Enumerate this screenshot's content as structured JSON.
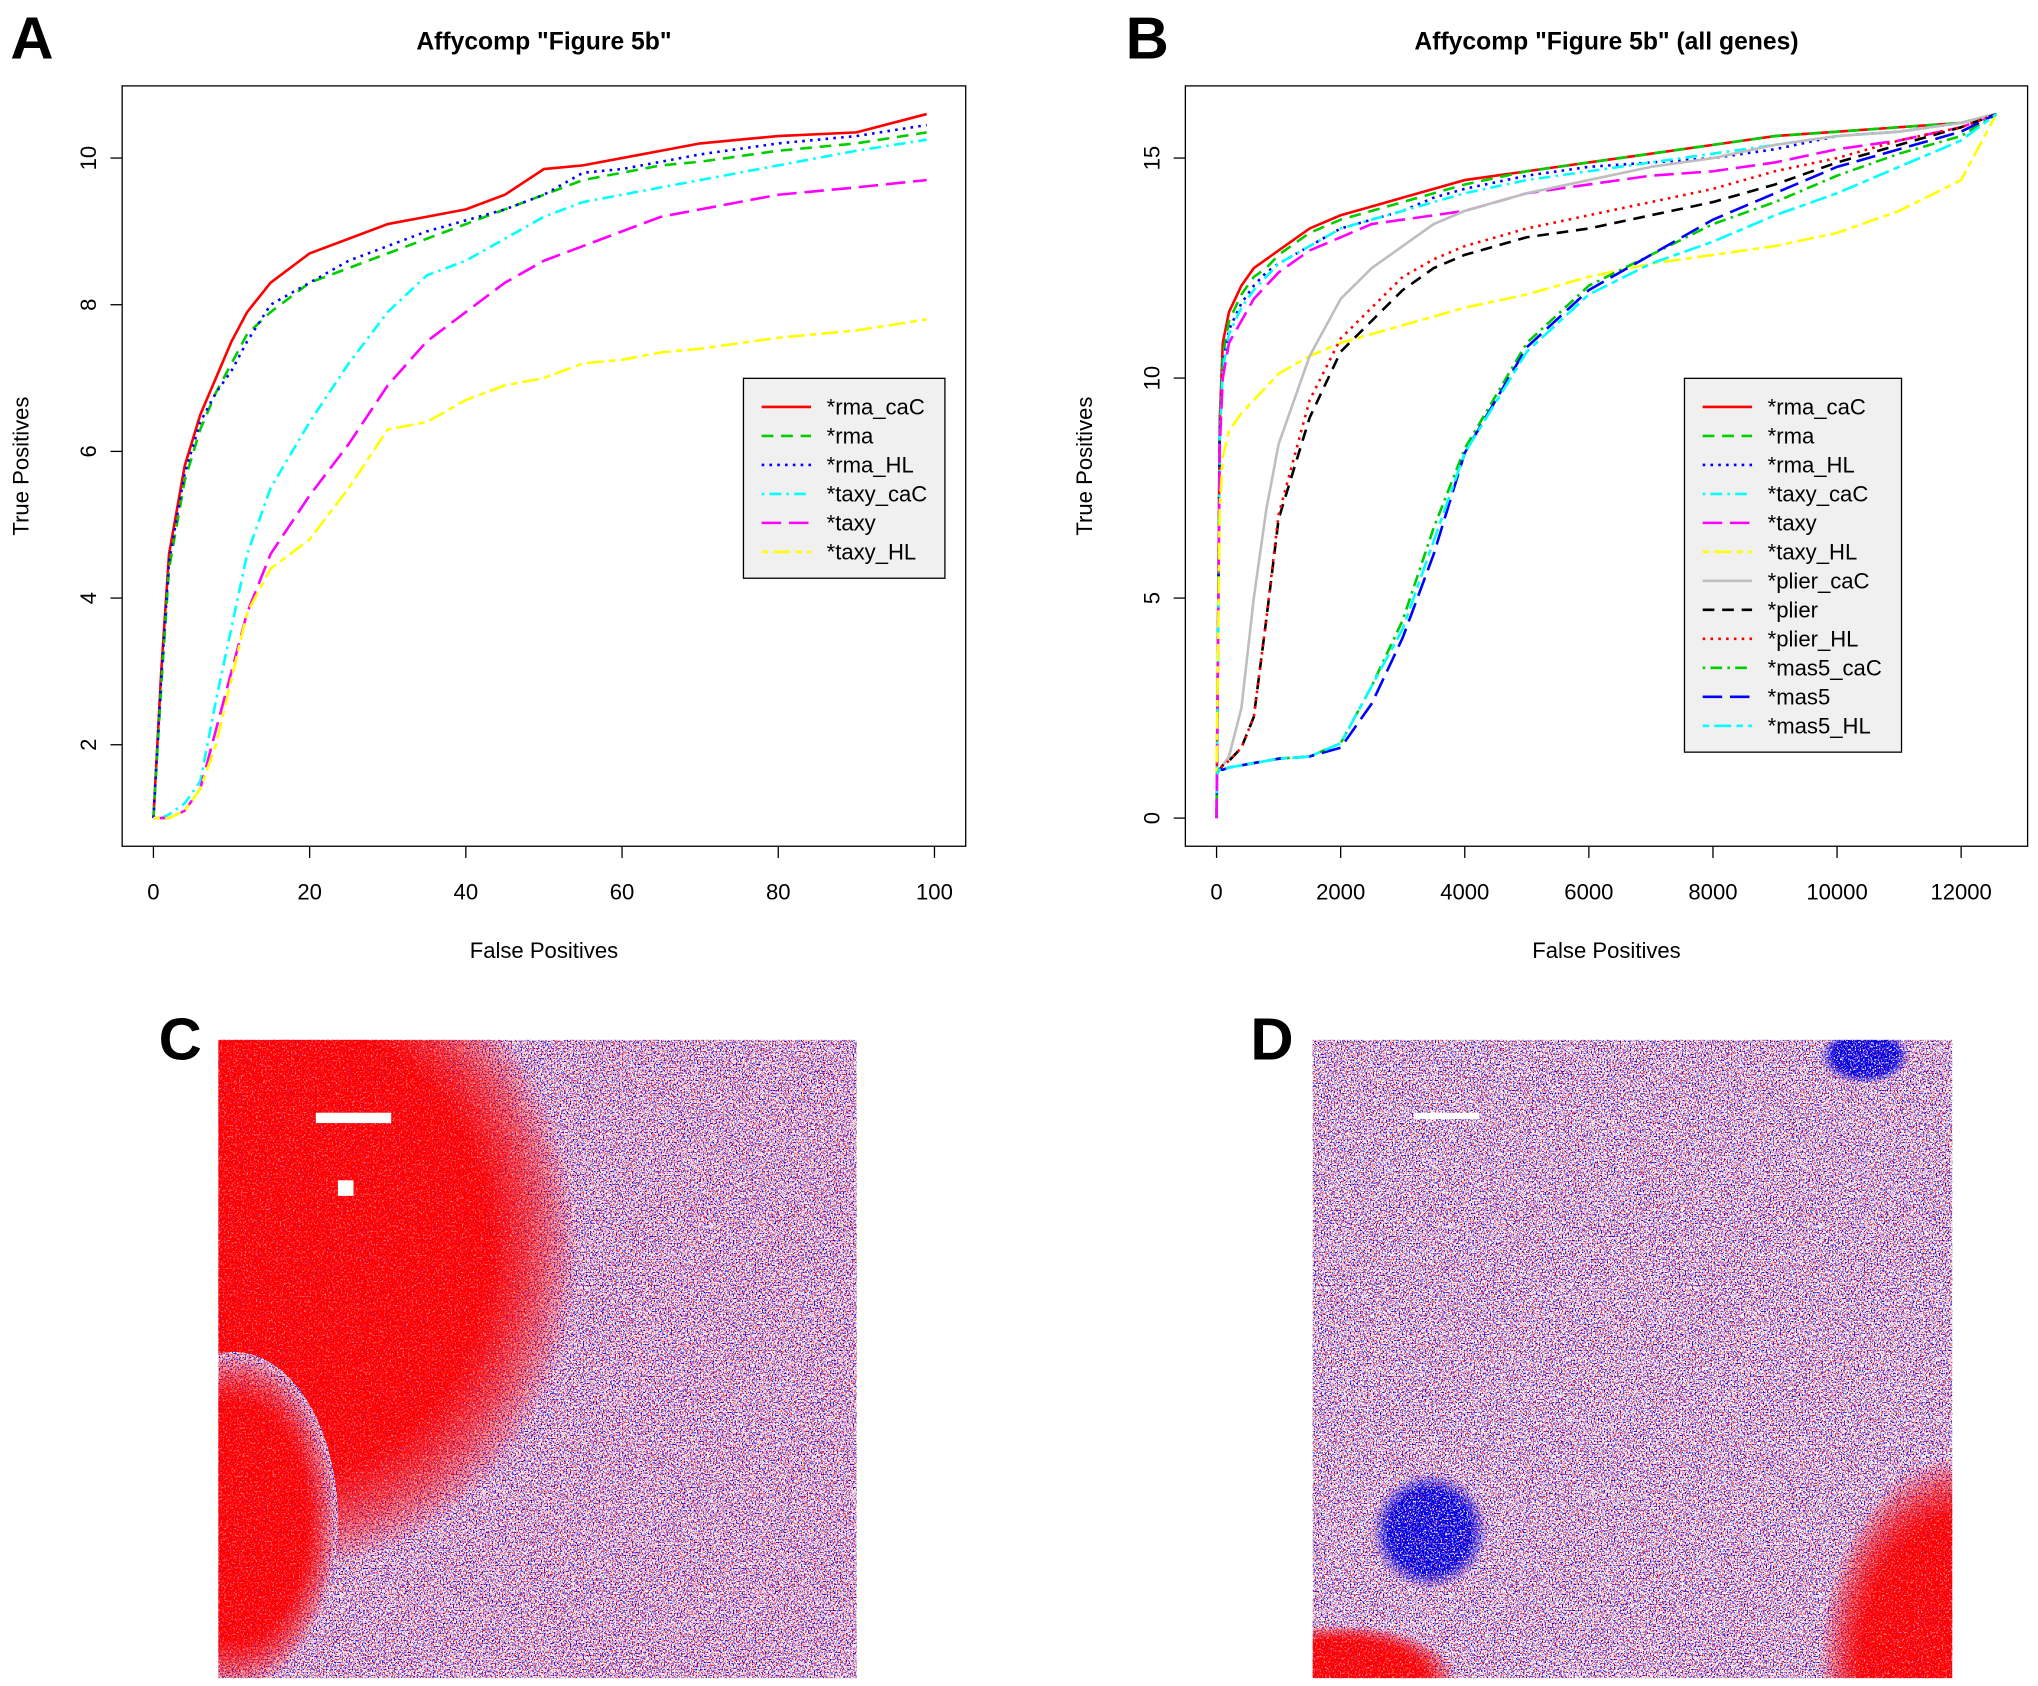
{
  "chart_data": [
    {
      "type": "line",
      "panel_label": "A",
      "title": "Affycomp \"Figure 5b\"",
      "x_label": "False Positives",
      "y_label": "True Positives",
      "x": [
        0,
        1,
        2,
        4,
        6,
        8,
        10,
        12,
        15,
        20,
        25,
        30,
        35,
        40,
        45,
        50,
        55,
        60,
        65,
        70,
        80,
        90,
        99
      ],
      "xlim": [
        -4,
        104
      ],
      "ylim": [
        0.616,
        10.984
      ],
      "xticks": [
        0,
        20,
        40,
        60,
        80,
        100
      ],
      "yticks": [
        2,
        4,
        6,
        8,
        10
      ],
      "legend": "right",
      "series": [
        {
          "name": "*rma_caC",
          "color": "#ff0000",
          "linestyle": "solid",
          "values": [
            1,
            3,
            4.6,
            5.8,
            6.5,
            7.0,
            7.5,
            7.9,
            8.3,
            8.7,
            8.9,
            9.1,
            9.2,
            9.3,
            9.5,
            9.85,
            9.9,
            10.0,
            10.1,
            10.2,
            10.3,
            10.35,
            10.6
          ]
        },
        {
          "name": "*rma",
          "color": "#00cd00",
          "linestyle": "dashed",
          "values": [
            1,
            2.8,
            4.4,
            5.6,
            6.3,
            6.8,
            7.2,
            7.6,
            7.9,
            8.3,
            8.5,
            8.7,
            8.9,
            9.1,
            9.3,
            9.5,
            9.7,
            9.8,
            9.9,
            9.95,
            10.1,
            10.2,
            10.35
          ]
        },
        {
          "name": "*rma_HL",
          "color": "#0000ff",
          "linestyle": "dotted",
          "values": [
            1,
            2.9,
            4.5,
            5.7,
            6.4,
            6.8,
            7.1,
            7.5,
            8.0,
            8.3,
            8.6,
            8.8,
            9.0,
            9.15,
            9.3,
            9.5,
            9.8,
            9.85,
            9.95,
            10.05,
            10.2,
            10.3,
            10.45
          ]
        },
        {
          "name": "*taxy_caC",
          "color": "#00ffff",
          "linestyle": "dotdash",
          "values": [
            1,
            1,
            1.05,
            1.2,
            1.5,
            2.6,
            3.6,
            4.6,
            5.5,
            6.4,
            7.2,
            7.9,
            8.4,
            8.6,
            8.9,
            9.2,
            9.4,
            9.5,
            9.6,
            9.7,
            9.9,
            10.1,
            10.25
          ]
        },
        {
          "name": "*taxy",
          "color": "#ff00ff",
          "linestyle": "longdash",
          "values": [
            1,
            1,
            1,
            1.1,
            1.4,
            2.2,
            3.0,
            3.8,
            4.6,
            5.4,
            6.1,
            6.9,
            7.5,
            7.9,
            8.3,
            8.6,
            8.8,
            9.0,
            9.2,
            9.3,
            9.5,
            9.6,
            9.7
          ]
        },
        {
          "name": "*taxy_HL",
          "color": "#ffff00",
          "linestyle": "twodash",
          "values": [
            1,
            1,
            1,
            1.1,
            1.4,
            2.0,
            2.9,
            3.8,
            4.4,
            4.8,
            5.5,
            6.3,
            6.4,
            6.7,
            6.9,
            7.0,
            7.2,
            7.25,
            7.35,
            7.4,
            7.55,
            7.65,
            7.8
          ]
        }
      ]
    },
    {
      "type": "line",
      "panel_label": "B",
      "title": "Affycomp \"Figure 5b\" (all genes)",
      "x_label": "False Positives",
      "y_label": "True Positives",
      "x": [
        0,
        50,
        100,
        200,
        400,
        600,
        800,
        1000,
        1500,
        2000,
        2500,
        3000,
        3500,
        4000,
        5000,
        6000,
        7000,
        8000,
        9000,
        10000,
        11000,
        12000,
        12568
      ],
      "xlim": [
        -503,
        13071
      ],
      "ylim": [
        -0.64,
        16.64
      ],
      "xticks": [
        0,
        2000,
        4000,
        6000,
        8000,
        10000,
        12000
      ],
      "yticks": [
        0,
        5,
        10,
        15
      ],
      "legend": "right",
      "series": [
        {
          "name": "*rma_caC",
          "color": "#ff0000",
          "linestyle": "solid",
          "values": [
            0,
            9,
            10.8,
            11.5,
            12.1,
            12.5,
            12.7,
            12.9,
            13.4,
            13.7,
            13.9,
            14.1,
            14.3,
            14.5,
            14.7,
            14.9,
            15.1,
            15.3,
            15.5,
            15.6,
            15.7,
            15.8,
            16
          ]
        },
        {
          "name": "*rma",
          "color": "#00cd00",
          "linestyle": "dashed",
          "values": [
            0,
            8.8,
            10.5,
            11.3,
            11.9,
            12.3,
            12.5,
            12.8,
            13.3,
            13.6,
            13.8,
            14.0,
            14.2,
            14.4,
            14.7,
            14.9,
            15.1,
            15.3,
            15.5,
            15.6,
            15.7,
            15.8,
            16
          ]
        },
        {
          "name": "*rma_HL",
          "color": "#0000ff",
          "linestyle": "dotted",
          "values": [
            0,
            8.7,
            10.3,
            11.1,
            11.7,
            12.1,
            12.4,
            12.6,
            13.0,
            13.4,
            13.6,
            13.8,
            14.1,
            14.3,
            14.6,
            14.8,
            14.9,
            15.0,
            15.2,
            15.5,
            15.6,
            15.8,
            16
          ]
        },
        {
          "name": "*taxy_caC",
          "color": "#00ffff",
          "linestyle": "dotdash",
          "values": [
            0,
            8.6,
            10.2,
            11.0,
            11.6,
            12.0,
            12.3,
            12.6,
            13.0,
            13.4,
            13.6,
            13.8,
            14.0,
            14.2,
            14.5,
            14.7,
            14.9,
            15.1,
            15.3,
            15.5,
            15.6,
            15.8,
            16
          ]
        },
        {
          "name": "*taxy",
          "color": "#ff00ff",
          "linestyle": "longdash",
          "values": [
            0,
            8.4,
            10.0,
            10.8,
            11.3,
            11.8,
            12.1,
            12.4,
            12.9,
            13.2,
            13.5,
            13.6,
            13.7,
            13.8,
            14.2,
            14.4,
            14.6,
            14.7,
            14.9,
            15.2,
            15.4,
            15.7,
            16
          ]
        },
        {
          "name": "*taxy_HL",
          "color": "#ffff00",
          "linestyle": "twodash",
          "values": [
            1,
            7,
            8.2,
            8.8,
            9.2,
            9.5,
            9.8,
            10.1,
            10.5,
            10.8,
            11.0,
            11.2,
            11.4,
            11.6,
            11.9,
            12.3,
            12.6,
            12.8,
            13.0,
            13.3,
            13.8,
            14.5,
            16
          ]
        },
        {
          "name": "*plier_caC",
          "color": "#bebebe",
          "linestyle": "solid",
          "values": [
            1,
            1.1,
            1.2,
            1.4,
            2.5,
            5,
            7,
            8.5,
            10.5,
            11.8,
            12.5,
            13.0,
            13.5,
            13.8,
            14.2,
            14.5,
            14.8,
            15.0,
            15.3,
            15.5,
            15.6,
            15.8,
            16
          ]
        },
        {
          "name": "*plier",
          "color": "#000000",
          "linestyle": "dashed",
          "values": [
            1,
            1.1,
            1.2,
            1.3,
            1.6,
            2.3,
            4.5,
            6.8,
            9.1,
            10.6,
            11.3,
            12.0,
            12.5,
            12.8,
            13.2,
            13.4,
            13.7,
            14.0,
            14.4,
            14.9,
            15.3,
            15.7,
            16
          ]
        },
        {
          "name": "*plier_HL",
          "color": "#ff0000",
          "linestyle": "dotted",
          "values": [
            1,
            1.1,
            1.2,
            1.3,
            1.6,
            2.3,
            4.5,
            6.9,
            9.5,
            10.9,
            11.6,
            12.3,
            12.7,
            13.0,
            13.4,
            13.7,
            14.0,
            14.3,
            14.7,
            15.0,
            15.4,
            15.7,
            16
          ]
        },
        {
          "name": "*mas5_caC",
          "color": "#00cd00",
          "linestyle": "dotdash",
          "values": [
            1,
            1.1,
            1.1,
            1.15,
            1.2,
            1.25,
            1.3,
            1.35,
            1.4,
            1.7,
            3.0,
            4.5,
            6.6,
            8.4,
            10.8,
            12.1,
            12.8,
            13.5,
            14.0,
            14.6,
            15.1,
            15.5,
            16
          ]
        },
        {
          "name": "*mas5",
          "color": "#0000ff",
          "linestyle": "longdash",
          "values": [
            1,
            1.1,
            1.1,
            1.15,
            1.2,
            1.25,
            1.3,
            1.35,
            1.4,
            1.6,
            2.6,
            4.1,
            6.0,
            8.3,
            10.7,
            12.0,
            12.8,
            13.6,
            14.2,
            14.8,
            15.2,
            15.6,
            16
          ]
        },
        {
          "name": "*mas5_HL",
          "color": "#00ffff",
          "linestyle": "twodash",
          "values": [
            1,
            1.1,
            1.1,
            1.15,
            1.2,
            1.25,
            1.3,
            1.35,
            1.4,
            1.7,
            3.0,
            4.3,
            6.3,
            8.3,
            10.6,
            11.9,
            12.6,
            13.1,
            13.7,
            14.2,
            14.8,
            15.4,
            16
          ]
        }
      ]
    }
  ],
  "images": [
    {
      "label": "C"
    },
    {
      "label": "D"
    }
  ]
}
